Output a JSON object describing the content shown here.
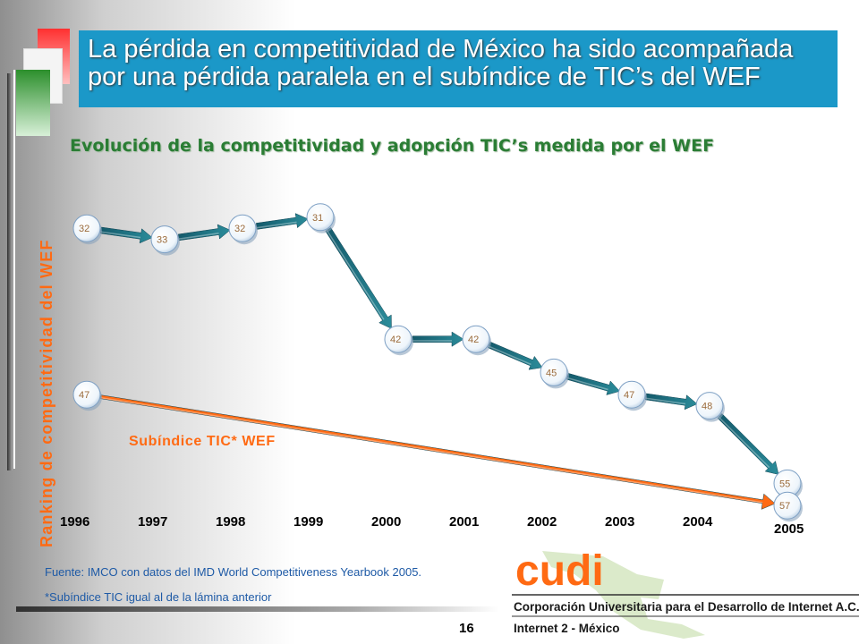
{
  "slide": {
    "title": "La pérdida en competitividad de México ha sido acompañada por una pérdida paralela en el subíndice de TIC’s del WEF",
    "page_number": "16"
  },
  "chart_data": {
    "type": "line",
    "title": "Evolución de la competitividad y adopción TIC’s medida por el  WEF",
    "ylabel": "Ranking de competitividad del WEF",
    "xlabel": "",
    "categories": [
      "1996",
      "1997",
      "1998",
      "1999",
      "2000",
      "2001",
      "2002",
      "2003",
      "2004",
      "2005"
    ],
    "y_axis_inverted": true,
    "ylim": [
      29,
      59
    ],
    "series": [
      {
        "name": "",
        "values": [
          32,
          33,
          32,
          31,
          42,
          42,
          45,
          47,
          48,
          55
        ]
      },
      {
        "name": "Subíndice TIC* WEF",
        "values": [
          47,
          null,
          null,
          null,
          null,
          null,
          null,
          null,
          null,
          57
        ]
      }
    ],
    "colors": {
      "ranking_arrow": "#1d6b82",
      "tic_arrow": "#ff6a13",
      "marker_text": "#9a6a3a"
    }
  },
  "footer": {
    "source": "Fuente: IMCO con datos del IMD World Competitiveness Yearbook 2005.",
    "note": "*Subíndice TIC igual al de la lámina anterior"
  },
  "logo": {
    "wordmark": "cudi",
    "line1": "Corporación Universitaria para el Desarrollo de Internet A.C.",
    "line2": "Internet 2 - México"
  }
}
